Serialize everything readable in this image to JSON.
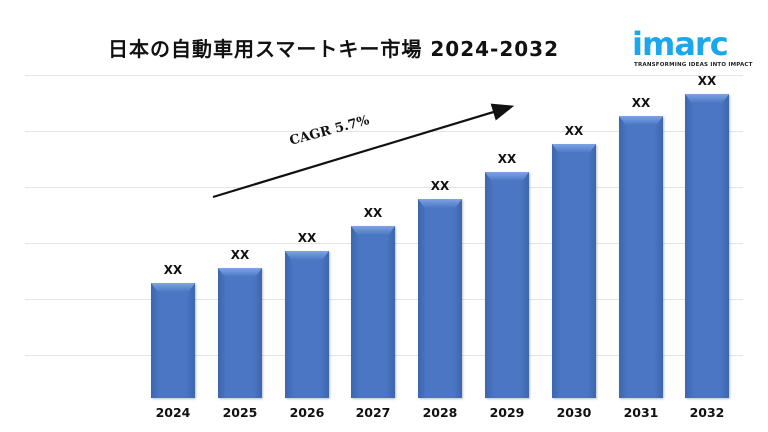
{
  "title": "日本の自動車用スマートキー市場 2024-2032",
  "logo": {
    "word": "imarc",
    "tagline": "TRANSFORMING IDEAS INTO IMPACT",
    "color": "#1aa7ec"
  },
  "annotation": {
    "cagr_label": "CAGR 5.7%"
  },
  "colors": {
    "bar": "#4a76c4",
    "grid": "#e4e4e4"
  },
  "chart_data": {
    "type": "bar",
    "title": "日本の自動車用スマートキー市場 2024-2032",
    "categories": [
      "2024",
      "2025",
      "2026",
      "2027",
      "2028",
      "2029",
      "2030",
      "2031",
      "2032"
    ],
    "values": [
      115,
      130,
      147,
      172,
      199,
      226,
      254,
      282,
      304
    ],
    "data_labels": [
      "XX",
      "XX",
      "XX",
      "XX",
      "XX",
      "XX",
      "XX",
      "XX",
      "XX"
    ],
    "value_note": "Values are relative bar heights in pixels; actual data labels are masked as 'XX'",
    "xlabel": "",
    "ylabel": "",
    "grid": true,
    "legend": "none",
    "annotations": [
      "CAGR 5.7%"
    ],
    "ylim": [
      0,
      323
    ]
  }
}
